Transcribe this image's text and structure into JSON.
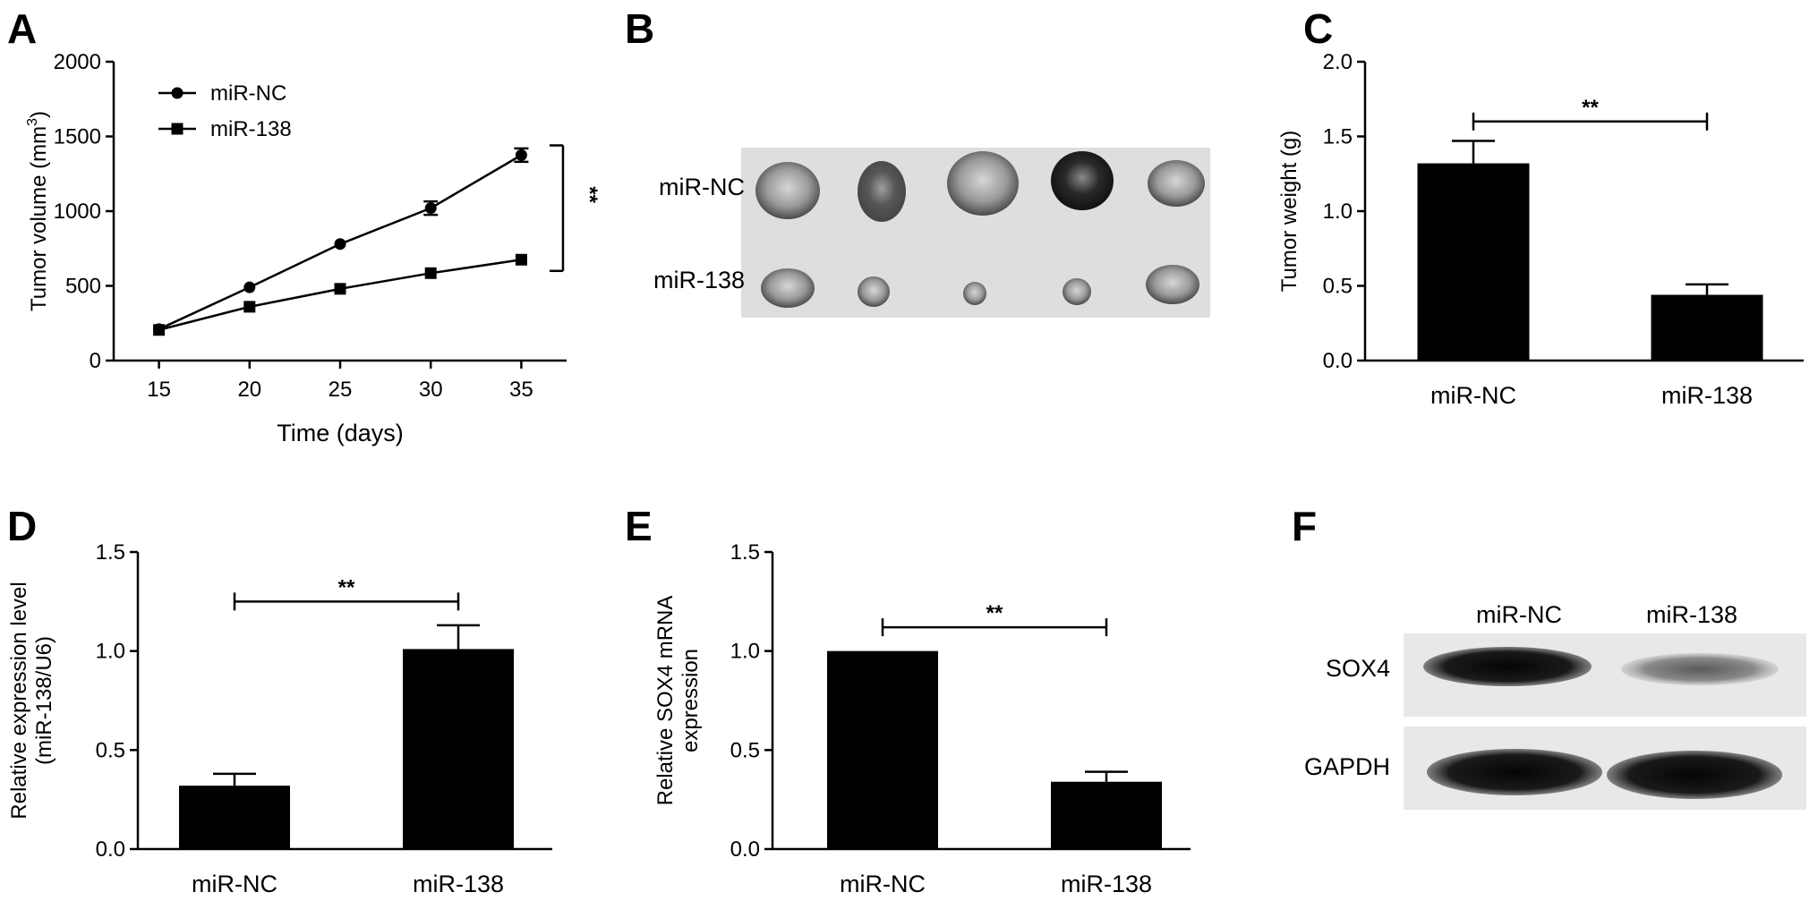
{
  "panels": {
    "A": {
      "letter": "A"
    },
    "B": {
      "letter": "B",
      "rows": [
        "miR-NC",
        "miR-138"
      ]
    },
    "C": {
      "letter": "C"
    },
    "D": {
      "letter": "D"
    },
    "E": {
      "letter": "E"
    },
    "F": {
      "letter": "F",
      "lanes": [
        "miR-NC",
        "miR-138"
      ],
      "bands": [
        "SOX4",
        "GAPDH"
      ]
    }
  },
  "chart_data": [
    {
      "panel": "A",
      "type": "line",
      "x": [
        15,
        20,
        25,
        30,
        35
      ],
      "series": [
        {
          "name": "miR-NC",
          "marker": "circle",
          "values": [
            210,
            490,
            780,
            1020,
            1375
          ],
          "errors": [
            20,
            20,
            20,
            45,
            45
          ]
        },
        {
          "name": "miR-138",
          "marker": "square",
          "values": [
            205,
            360,
            480,
            585,
            675
          ],
          "errors": [
            15,
            15,
            15,
            15,
            15
          ]
        }
      ],
      "xlabel": "Time (days)",
      "ylabel": "Tumor volume (mm",
      "ylabel_sup": "3",
      "ylabel_end": ")",
      "xticks": [
        "15",
        "20",
        "25",
        "30",
        "35"
      ],
      "yticks": [
        "0",
        "500",
        "1000",
        "1500",
        "2000"
      ],
      "ylim": [
        0,
        2000
      ],
      "xlim": [
        12.5,
        37.5
      ],
      "legend": "top-left",
      "significance": "**",
      "significance_between": [
        600,
        1440
      ],
      "grid": false
    },
    {
      "panel": "C",
      "type": "bar",
      "categories": [
        "miR-NC",
        "miR-138"
      ],
      "values": [
        1.32,
        0.44
      ],
      "errors": [
        0.15,
        0.07
      ],
      "ylabel": "Tumor weight (g)",
      "yticks": [
        "0.0",
        "0.5",
        "1.0",
        "1.5",
        "2.0"
      ],
      "ylim": [
        0,
        2.0
      ],
      "significance": "**",
      "significance_y": 1.6,
      "grid": false
    },
    {
      "panel": "D",
      "type": "bar",
      "categories": [
        "miR-NC",
        "miR-138"
      ],
      "values": [
        0.32,
        1.01
      ],
      "errors": [
        0.06,
        0.12
      ],
      "ylabel": "Relative expression level",
      "ylabel2": "(miR-138/U6)",
      "yticks": [
        "0.0",
        "0.5",
        "1.0",
        "1.5"
      ],
      "ylim": [
        0,
        1.5
      ],
      "significance": "**",
      "significance_y": 1.25,
      "grid": false
    },
    {
      "panel": "E",
      "type": "bar",
      "categories": [
        "miR-NC",
        "miR-138"
      ],
      "values": [
        1.0,
        0.34
      ],
      "errors": [
        0.0,
        0.05
      ],
      "ylabel": "Relative SOX4 mRNA",
      "ylabel2": "expression",
      "yticks": [
        "0.0",
        "0.5",
        "1.0",
        "1.5"
      ],
      "ylim": [
        0,
        1.5
      ],
      "significance": "**",
      "significance_y": 1.12,
      "grid": false
    }
  ]
}
